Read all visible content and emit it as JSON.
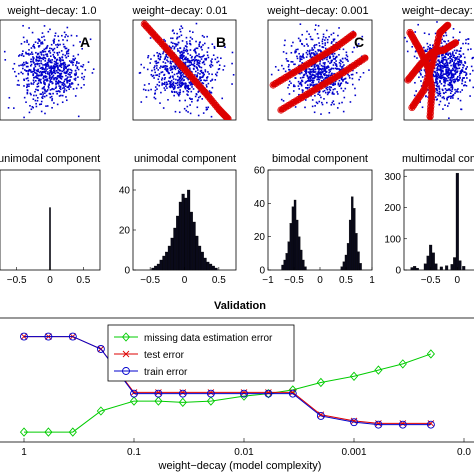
{
  "chart_data": [
    {
      "type": "scatter",
      "title": "weight−decay: 1.0",
      "panel_label": "A",
      "colors": {
        "points": "#0000cc",
        "fit": "#dd0000"
      },
      "xlim": [
        -1,
        1
      ],
      "ylim": [
        -1,
        1
      ],
      "fit_shape": "none"
    },
    {
      "type": "scatter",
      "title": "weight−decay: 0.01",
      "panel_label": "B",
      "colors": {
        "points": "#0000cc",
        "fit": "#dd0000"
      },
      "xlim": [
        -1,
        1
      ],
      "ylim": [
        -1,
        1
      ],
      "fit_shape": "single diagonal band",
      "fit_points": [
        [
          -0.78,
          0.92
        ],
        [
          -0.5,
          0.6
        ],
        [
          -0.2,
          0.25
        ],
        [
          0.1,
          -0.1
        ],
        [
          0.4,
          -0.45
        ],
        [
          0.68,
          -0.8
        ],
        [
          0.85,
          -0.98
        ]
      ]
    },
    {
      "type": "scatter",
      "title": "weight−decay: 0.001",
      "panel_label": "C",
      "colors": {
        "points": "#0000cc",
        "fit": "#dd0000"
      },
      "xlim": [
        -1,
        1
      ],
      "ylim": [
        -1,
        1
      ],
      "fit_shape": "two parallel bands",
      "fit_points_a": [
        [
          -0.9,
          -0.3
        ],
        [
          -0.5,
          -0.05
        ],
        [
          -0.1,
          0.2
        ],
        [
          0.3,
          0.45
        ],
        [
          0.65,
          0.72
        ]
      ],
      "fit_points_b": [
        [
          -0.75,
          -0.8
        ],
        [
          -0.35,
          -0.55
        ],
        [
          0.05,
          -0.3
        ],
        [
          0.45,
          -0.05
        ],
        [
          0.88,
          0.25
        ]
      ]
    },
    {
      "type": "scatter",
      "title": "weight−decay:",
      "colors": {
        "points": "#0000cc",
        "fit": "#dd0000"
      },
      "xlim": [
        -1,
        1
      ],
      "ylim": [
        -1,
        1
      ],
      "fit_shape": "multiple curved bands",
      "fit_points_a": [
        [
          -0.9,
          -0.2
        ],
        [
          -0.6,
          0.1
        ],
        [
          -0.3,
          0.35
        ],
        [
          0.0,
          0.4
        ],
        [
          0.3,
          0.55
        ]
      ],
      "fit_points_b": [
        [
          -0.8,
          -0.75
        ],
        [
          -0.5,
          -0.4
        ],
        [
          -0.3,
          0.1
        ],
        [
          -0.1,
          0.75
        ],
        [
          0.1,
          0.9
        ]
      ],
      "fit_points_c": [
        [
          -0.85,
          0.75
        ],
        [
          -0.6,
          0.4
        ],
        [
          -0.4,
          0.05
        ],
        [
          -0.3,
          -0.4
        ],
        [
          -0.35,
          -0.95
        ]
      ]
    },
    {
      "type": "bar",
      "title": "unimodal component",
      "xlim": [
        -0.75,
        0.75
      ],
      "xticks": [
        "−0.5",
        "0",
        "0.5"
      ],
      "bins": [
        {
          "x": 0.0,
          "h": 1.0
        }
      ],
      "ymax": 1.6
    },
    {
      "type": "bar",
      "title": "unimodal component",
      "xlim": [
        -0.75,
        0.75
      ],
      "ylim": [
        0,
        50
      ],
      "yticks": [
        "0",
        "20",
        "40"
      ],
      "xticks": [
        "−0.5",
        "0",
        "0.5"
      ],
      "bins": [
        {
          "x": -0.46,
          "h": 1
        },
        {
          "x": -0.42,
          "h": 2
        },
        {
          "x": -0.38,
          "h": 3
        },
        {
          "x": -0.34,
          "h": 5
        },
        {
          "x": -0.3,
          "h": 7
        },
        {
          "x": -0.26,
          "h": 9
        },
        {
          "x": -0.22,
          "h": 12
        },
        {
          "x": -0.18,
          "h": 16
        },
        {
          "x": -0.14,
          "h": 21
        },
        {
          "x": -0.1,
          "h": 27
        },
        {
          "x": -0.06,
          "h": 34
        },
        {
          "x": -0.02,
          "h": 38
        },
        {
          "x": 0.02,
          "h": 36
        },
        {
          "x": 0.06,
          "h": 40
        },
        {
          "x": 0.1,
          "h": 29
        },
        {
          "x": 0.14,
          "h": 24
        },
        {
          "x": 0.18,
          "h": 17
        },
        {
          "x": 0.22,
          "h": 12
        },
        {
          "x": 0.26,
          "h": 9
        },
        {
          "x": 0.3,
          "h": 6
        },
        {
          "x": 0.34,
          "h": 4
        },
        {
          "x": 0.38,
          "h": 3
        },
        {
          "x": 0.42,
          "h": 2
        },
        {
          "x": 0.46,
          "h": 1
        }
      ]
    },
    {
      "type": "bar",
      "title": "bimodal component",
      "xlim": [
        -1,
        1
      ],
      "ylim": [
        0,
        60
      ],
      "yticks": [
        "0",
        "20",
        "40",
        "60"
      ],
      "xticks": [
        "−1",
        "−0.5",
        "0",
        "0.5",
        "1"
      ],
      "bins": [
        {
          "x": -0.72,
          "h": 3
        },
        {
          "x": -0.68,
          "h": 6
        },
        {
          "x": -0.64,
          "h": 10
        },
        {
          "x": -0.6,
          "h": 17
        },
        {
          "x": -0.56,
          "h": 28
        },
        {
          "x": -0.52,
          "h": 38
        },
        {
          "x": -0.48,
          "h": 42
        },
        {
          "x": -0.44,
          "h": 30
        },
        {
          "x": -0.4,
          "h": 20
        },
        {
          "x": -0.36,
          "h": 12
        },
        {
          "x": -0.32,
          "h": 6
        },
        {
          "x": -0.28,
          "h": 2
        },
        {
          "x": 0.42,
          "h": 2
        },
        {
          "x": 0.46,
          "h": 5
        },
        {
          "x": 0.5,
          "h": 9
        },
        {
          "x": 0.54,
          "h": 16
        },
        {
          "x": 0.58,
          "h": 30
        },
        {
          "x": 0.62,
          "h": 44
        },
        {
          "x": 0.66,
          "h": 37
        },
        {
          "x": 0.7,
          "h": 22
        },
        {
          "x": 0.74,
          "h": 11
        },
        {
          "x": 0.78,
          "h": 4
        }
      ]
    },
    {
      "type": "bar",
      "title": "multimodal compon",
      "xlim": [
        -1,
        0.5
      ],
      "ylim": [
        0,
        320
      ],
      "yticks": [
        "0",
        "100",
        "200",
        "300"
      ],
      "xticks": [
        "−0.5",
        "0"
      ],
      "bins": [
        {
          "x": -0.85,
          "h": 8
        },
        {
          "x": -0.8,
          "h": 12
        },
        {
          "x": -0.75,
          "h": 6
        },
        {
          "x": -0.6,
          "h": 20
        },
        {
          "x": -0.55,
          "h": 45
        },
        {
          "x": -0.5,
          "h": 80
        },
        {
          "x": -0.45,
          "h": 55
        },
        {
          "x": -0.4,
          "h": 20
        },
        {
          "x": -0.3,
          "h": 10
        },
        {
          "x": -0.2,
          "h": 14
        },
        {
          "x": -0.1,
          "h": 18
        },
        {
          "x": -0.05,
          "h": 40
        },
        {
          "x": 0.0,
          "h": 310
        },
        {
          "x": 0.05,
          "h": 30
        },
        {
          "x": 0.12,
          "h": 12
        }
      ]
    },
    {
      "type": "line",
      "title": "Validation",
      "xlabel": "weight−decay (model complexity)",
      "x": [
        1,
        0.6,
        0.36,
        0.2,
        0.1,
        0.06,
        0.036,
        0.02,
        0.01,
        0.006,
        0.0036,
        0.002,
        0.001,
        0.0006,
        0.00036,
        0.0002
      ],
      "xtick_labels": [
        "1",
        "0.1",
        "0.01",
        "0.001",
        "0.0"
      ],
      "xtick_values": [
        1,
        0.1,
        0.01,
        0.001,
        0.0001
      ],
      "x_scale": "log (reversed)",
      "ylim": [
        0,
        1
      ],
      "series": [
        {
          "name": "missing data estimation error",
          "color": "#00cc00",
          "marker": "diamond",
          "values": [
            0.08,
            0.08,
            0.08,
            0.25,
            0.33,
            0.33,
            0.32,
            0.33,
            0.37,
            0.39,
            0.42,
            0.48,
            0.53,
            0.58,
            0.63,
            0.71
          ]
        },
        {
          "name": "test error",
          "color": "#dd0000",
          "marker": "x",
          "values": [
            0.85,
            0.85,
            0.85,
            0.75,
            0.4,
            0.4,
            0.4,
            0.4,
            0.4,
            0.4,
            0.4,
            0.22,
            0.17,
            0.15,
            0.15,
            0.15
          ]
        },
        {
          "name": "train error",
          "color": "#0000cc",
          "marker": "circle",
          "values": [
            0.85,
            0.85,
            0.85,
            0.75,
            0.39,
            0.39,
            0.39,
            0.39,
            0.39,
            0.39,
            0.39,
            0.21,
            0.16,
            0.14,
            0.14,
            0.14
          ]
        }
      ],
      "legend_position": "top-left"
    }
  ]
}
